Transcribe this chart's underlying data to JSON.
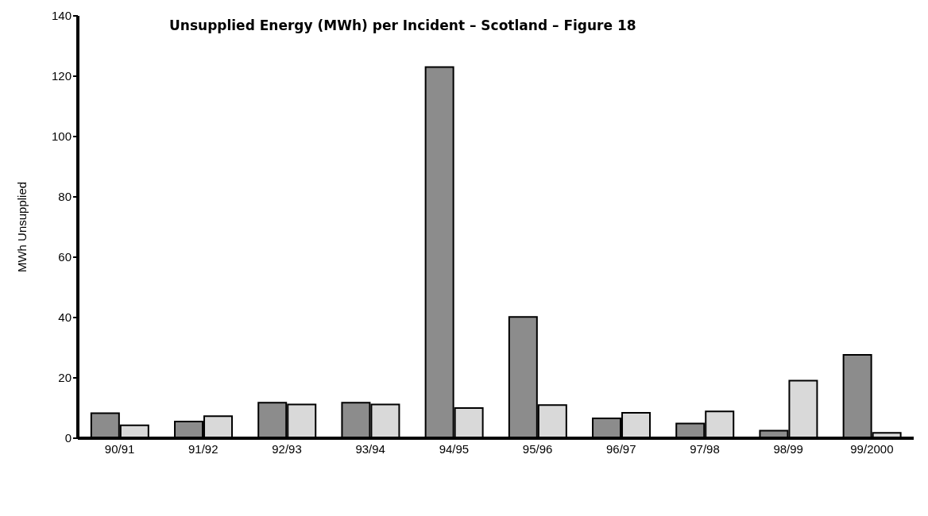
{
  "chart_data": {
    "type": "bar",
    "title": "Unsupplied Energy (MWh) per Incident – Scotland – Figure 18",
    "ylabel": "MWh Unsupplied",
    "categories": [
      "90/91",
      "91/92",
      "92/93",
      "93/94",
      "94/95",
      "95/96",
      "96/97",
      "97/98",
      "98/99",
      "99/2000"
    ],
    "series": [
      {
        "color": "#8c8c8c",
        "values": [
          8.3,
          5.5,
          11.8,
          11.8,
          123,
          40.2,
          6.6,
          4.9,
          2.5,
          27.6
        ]
      },
      {
        "color": "#d9d9d9",
        "values": [
          4.3,
          7.3,
          11.2,
          11.2,
          10,
          11,
          8.4,
          8.9,
          19.1,
          1.8
        ]
      }
    ],
    "ylim": [
      0,
      140
    ],
    "yticks": [
      0,
      20,
      40,
      60,
      80,
      100,
      120,
      140
    ],
    "grid": false
  }
}
